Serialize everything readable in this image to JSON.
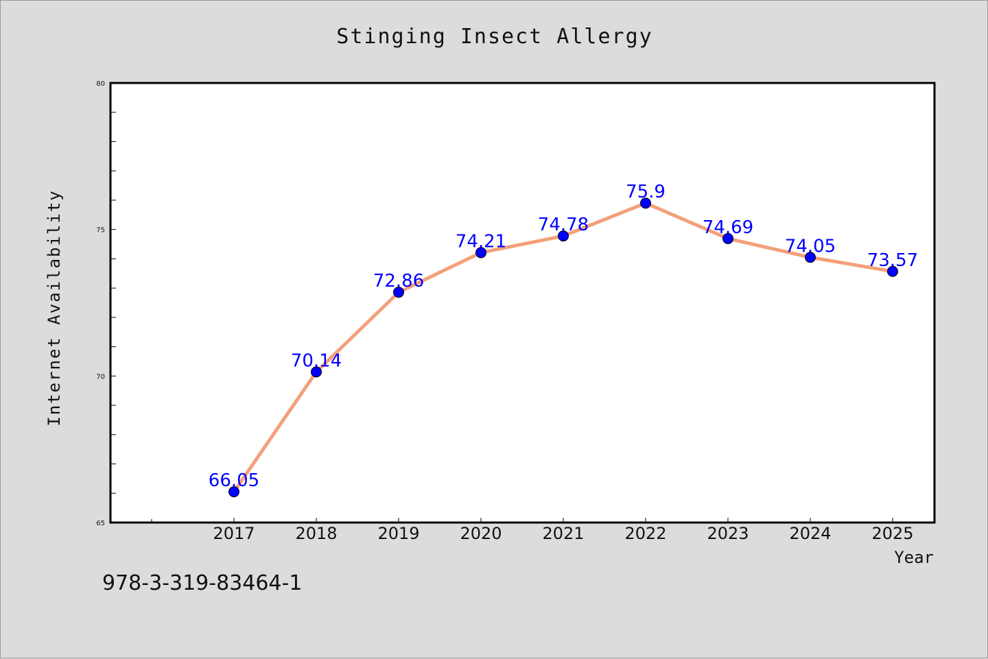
{
  "chart_data": {
    "type": "line",
    "title": "Stinging Insect Allergy",
    "xlabel": "Year",
    "ylabel": "Internet Availability",
    "categories": [
      "2017",
      "2018",
      "2019",
      "2020",
      "2021",
      "2022",
      "2023",
      "2024",
      "2025"
    ],
    "series": [
      {
        "values": [
          66.05,
          70.14,
          72.86,
          74.21,
          74.78,
          75.9,
          74.69,
          74.05,
          73.57
        ],
        "labels": [
          "66.05",
          "70.14",
          "72.86",
          "74.21",
          "74.78",
          "75.9",
          "74.69",
          "74.05",
          "73.57"
        ],
        "line_color": "#f4a07a",
        "marker_color": "#0000ff",
        "label_color": "#0000ff"
      }
    ],
    "ylim": [
      65,
      80
    ],
    "yticks": [
      "65",
      "70",
      "75",
      "80"
    ],
    "grid": false,
    "legend": "none"
  },
  "footer": {
    "identifier": "978-3-319-83464-1"
  },
  "colors": {
    "background": "#dcdcdc",
    "plot_area": "#ffffff",
    "axis": "#000000"
  }
}
